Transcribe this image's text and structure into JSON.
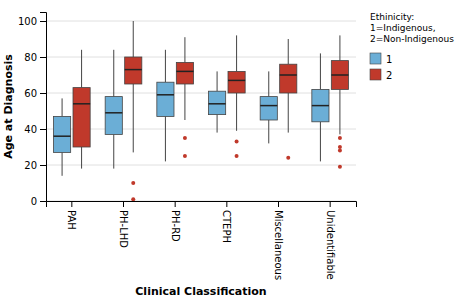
{
  "chart_data": {
    "type": "box",
    "xlabel": "Clinical Classification",
    "ylabel": "Age at Diagnosis",
    "categories": [
      "PAH",
      "PH-LHD",
      "PH-RD",
      "CTEPH",
      "Miscellaneous",
      "Unidentifiable"
    ],
    "legend_title": "Ethinicity:\n1=Indigenous,\n2=Non-Indigenous",
    "legend": "right",
    "grid": true,
    "ylim": [
      0,
      105
    ],
    "yticks": [
      0,
      20,
      40,
      60,
      80,
      100
    ],
    "series": [
      {
        "name": "1",
        "color": "#6baed6",
        "values": [
          {
            "whislo": 14,
            "q1": 27,
            "median": 36,
            "q3": 47,
            "whishi": 57,
            "fliers": []
          },
          {
            "whislo": 18,
            "q1": 37,
            "median": 49,
            "q3": 58,
            "whishi": 84,
            "fliers": []
          },
          {
            "whislo": 22,
            "q1": 47,
            "median": 59,
            "q3": 66,
            "whishi": 84,
            "fliers": []
          },
          {
            "whislo": 38,
            "q1": 48,
            "median": 54,
            "q3": 61,
            "whishi": 72,
            "fliers": []
          },
          {
            "whislo": 32,
            "q1": 45,
            "median": 53,
            "q3": 58,
            "whishi": 72,
            "fliers": []
          },
          {
            "whislo": 22,
            "q1": 44,
            "median": 53,
            "q3": 62,
            "whishi": 82,
            "fliers": []
          }
        ]
      },
      {
        "name": "2",
        "color": "#c0392b",
        "values": [
          {
            "whislo": 18,
            "q1": 30,
            "median": 54,
            "q3": 63,
            "whishi": 84,
            "fliers": []
          },
          {
            "whislo": 27,
            "q1": 65,
            "median": 73,
            "q3": 80,
            "whishi": 100,
            "fliers": [
              10,
              1
            ]
          },
          {
            "whislo": 45,
            "q1": 65,
            "median": 72,
            "q3": 77,
            "whishi": 91,
            "fliers": [
              25,
              35
            ]
          },
          {
            "whislo": 39,
            "q1": 60,
            "median": 67,
            "q3": 72,
            "whishi": 92,
            "fliers": [
              25,
              33
            ]
          },
          {
            "whislo": 38,
            "q1": 60,
            "median": 70,
            "q3": 76,
            "whishi": 90,
            "fliers": [
              24
            ]
          },
          {
            "whislo": 37,
            "q1": 62,
            "median": 70,
            "q3": 78,
            "whishi": 92,
            "fliers": [
              19,
              28,
              30,
              35
            ]
          }
        ]
      }
    ]
  }
}
